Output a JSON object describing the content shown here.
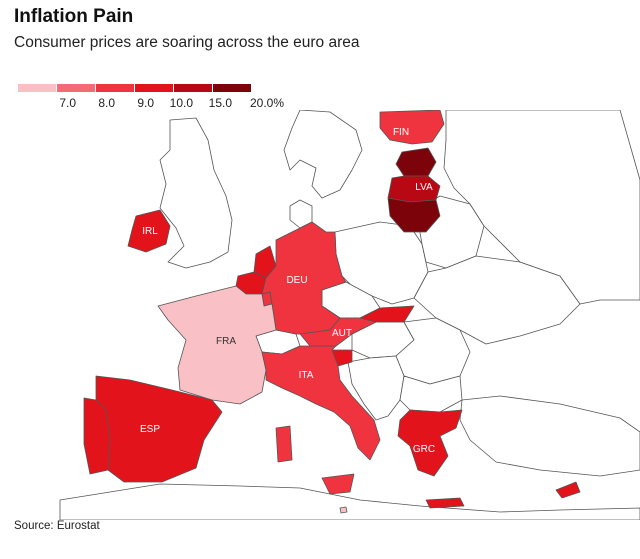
{
  "header": {
    "title": "Inflation Pain",
    "subtitle": "Consumer prices are soaring across the euro area"
  },
  "legend": {
    "items": [
      {
        "label": "7.0",
        "color": "#f9c0c5"
      },
      {
        "label": "8.0",
        "color": "#f56b75"
      },
      {
        "label": "9.0",
        "color": "#f0343f"
      },
      {
        "label": "10.0",
        "color": "#e3131c"
      },
      {
        "label": "15.0",
        "color": "#b70813"
      },
      {
        "label": "20.0%",
        "color": "#7b0309"
      }
    ]
  },
  "map": {
    "base_fill": "#ffffff",
    "border_color": "#555555",
    "labels": {
      "FIN": "FIN",
      "LVA": "LVA",
      "IRL": "IRL",
      "DEU": "DEU",
      "FRA": "FRA",
      "AUT": "AUT",
      "ITA": "ITA",
      "ESP": "ESP",
      "GRC": "GRC"
    },
    "fills": {
      "FIN": "#f0343f",
      "EST": "#7b0309",
      "LVA": "#b70813",
      "LTU": "#7b0309",
      "IRL": "#e3131c",
      "NLD": "#e3131c",
      "BEL": "#e3131c",
      "LUX": "#f0343f",
      "DEU": "#f0343f",
      "FRA": "#f9c0c5",
      "AUT": "#f0343f",
      "SVK": "#e3131c",
      "SVN": "#e3131c",
      "ITA": "#f0343f",
      "ESP": "#e3131c",
      "PRT": "#e3131c",
      "GRC": "#e3131c",
      "CYP": "#e3131c",
      "MLT": "#f9c0c5"
    }
  },
  "footer": {
    "source": "Source: Eurostat"
  }
}
